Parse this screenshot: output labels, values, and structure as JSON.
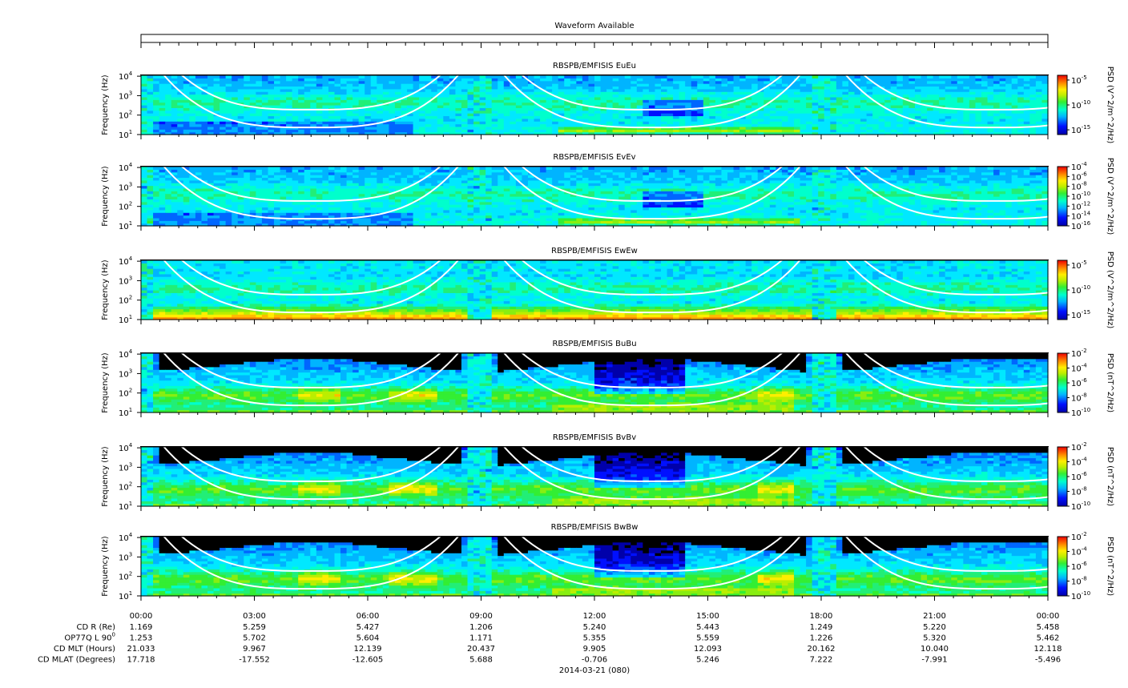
{
  "waveform_title": "Waveform Available",
  "chart_data": {
    "type": "heatmap",
    "date_label": "2014-03-21 (080)",
    "x_ticks": [
      "00:00",
      "03:00",
      "06:00",
      "09:00",
      "12:00",
      "15:00",
      "18:00",
      "21:00",
      "00:00"
    ],
    "grid": false,
    "panels": [
      {
        "title": "RBSPB/EMFISIS  EuEu",
        "ylabel": "Frequency (Hz)",
        "y_ticks": [
          {
            "base": "10",
            "exp": "1"
          },
          {
            "base": "10",
            "exp": "2"
          },
          {
            "base": "10",
            "exp": "3"
          },
          {
            "base": "10",
            "exp": "4"
          }
        ],
        "colorbar_label": "PSD (V^2/m^2/Hz)",
        "colorbar_ticks": [
          {
            "base": "10",
            "exp": "-5"
          },
          {
            "base": "10",
            "exp": "-10"
          },
          {
            "base": "10",
            "exp": "-15"
          }
        ],
        "colorbar_range": [
          -16,
          -4
        ],
        "magnetic": false
      },
      {
        "title": "RBSPB/EMFISIS  EvEv",
        "ylabel": "Frequency (Hz)",
        "y_ticks": [
          {
            "base": "10",
            "exp": "1"
          },
          {
            "base": "10",
            "exp": "2"
          },
          {
            "base": "10",
            "exp": "3"
          },
          {
            "base": "10",
            "exp": "4"
          }
        ],
        "colorbar_label": "PSD (V^2/m^2/Hz)",
        "colorbar_ticks": [
          {
            "base": "10",
            "exp": "-4"
          },
          {
            "base": "10",
            "exp": "-6"
          },
          {
            "base": "10",
            "exp": "-8"
          },
          {
            "base": "10",
            "exp": "-10"
          },
          {
            "base": "10",
            "exp": "-12"
          },
          {
            "base": "10",
            "exp": "-14"
          },
          {
            "base": "10",
            "exp": "-16"
          }
        ],
        "colorbar_range": [
          -16,
          -4
        ],
        "magnetic": false
      },
      {
        "title": "RBSPB/EMFISIS  EwEw",
        "ylabel": "Frequency (Hz)",
        "y_ticks": [
          {
            "base": "10",
            "exp": "1"
          },
          {
            "base": "10",
            "exp": "2"
          },
          {
            "base": "10",
            "exp": "3"
          },
          {
            "base": "10",
            "exp": "4"
          }
        ],
        "colorbar_label": "PSD (V^2/m^2/Hz)",
        "colorbar_ticks": [
          {
            "base": "10",
            "exp": "-5"
          },
          {
            "base": "10",
            "exp": "-10"
          },
          {
            "base": "10",
            "exp": "-15"
          }
        ],
        "colorbar_range": [
          -16,
          -4
        ],
        "magnetic": false
      },
      {
        "title": "RBSPB/EMFISIS  BuBu",
        "ylabel": "Frequency (Hz)",
        "y_ticks": [
          {
            "base": "10",
            "exp": "1"
          },
          {
            "base": "10",
            "exp": "2"
          },
          {
            "base": "10",
            "exp": "3"
          },
          {
            "base": "10",
            "exp": "4"
          }
        ],
        "colorbar_label": "PSD (nT^2/Hz)",
        "colorbar_ticks": [
          {
            "base": "10",
            "exp": "-2"
          },
          {
            "base": "10",
            "exp": "-4"
          },
          {
            "base": "10",
            "exp": "-6"
          },
          {
            "base": "10",
            "exp": "-8"
          },
          {
            "base": "10",
            "exp": "-10"
          }
        ],
        "colorbar_range": [
          -10,
          -2
        ],
        "magnetic": true
      },
      {
        "title": "RBSPB/EMFISIS  BvBv",
        "ylabel": "Frequency (Hz)",
        "y_ticks": [
          {
            "base": "10",
            "exp": "1"
          },
          {
            "base": "10",
            "exp": "2"
          },
          {
            "base": "10",
            "exp": "3"
          },
          {
            "base": "10",
            "exp": "4"
          }
        ],
        "colorbar_label": "PSD (nT^2/Hz)",
        "colorbar_ticks": [
          {
            "base": "10",
            "exp": "-2"
          },
          {
            "base": "10",
            "exp": "-4"
          },
          {
            "base": "10",
            "exp": "-6"
          },
          {
            "base": "10",
            "exp": "-8"
          },
          {
            "base": "10",
            "exp": "-10"
          }
        ],
        "colorbar_range": [
          -10,
          -2
        ],
        "magnetic": true
      },
      {
        "title": "RBSPB/EMFISIS  BwBw",
        "ylabel": "Frequency (Hz)",
        "y_ticks": [
          {
            "base": "10",
            "exp": "1"
          },
          {
            "base": "10",
            "exp": "2"
          },
          {
            "base": "10",
            "exp": "3"
          },
          {
            "base": "10",
            "exp": "4"
          }
        ],
        "colorbar_label": "PSD (nT^2/Hz)",
        "colorbar_ticks": [
          {
            "base": "10",
            "exp": "-2"
          },
          {
            "base": "10",
            "exp": "-4"
          },
          {
            "base": "10",
            "exp": "-6"
          },
          {
            "base": "10",
            "exp": "-8"
          },
          {
            "base": "10",
            "exp": "-10"
          }
        ],
        "colorbar_range": [
          -10,
          -2
        ],
        "magnetic": true
      }
    ],
    "ephemeris": [
      {
        "label": "CD R (Re)",
        "label_sup": "",
        "values": [
          "1.169",
          "5.259",
          "5.427",
          "1.206",
          "5.240",
          "5.443",
          "1.249",
          "5.220",
          "5.458"
        ]
      },
      {
        "label": "OP77Q L 90",
        "label_sup": "0",
        "values": [
          "1.253",
          "5.702",
          "5.604",
          "1.171",
          "5.355",
          "5.559",
          "1.226",
          "5.320",
          "5.462"
        ]
      },
      {
        "label": "CD MLT (Hours)",
        "label_sup": "",
        "values": [
          "21.033",
          "9.967",
          "12.139",
          "20.437",
          "9.905",
          "12.093",
          "20.162",
          "10.040",
          "12.118"
        ]
      },
      {
        "label": "CD MLAT (Degrees)",
        "label_sup": "",
        "values": [
          "17.718",
          "-17.552",
          "-12.605",
          "5.688",
          "-0.706",
          "5.246",
          "7.222",
          "-7.991",
          "-5.496"
        ]
      }
    ]
  }
}
